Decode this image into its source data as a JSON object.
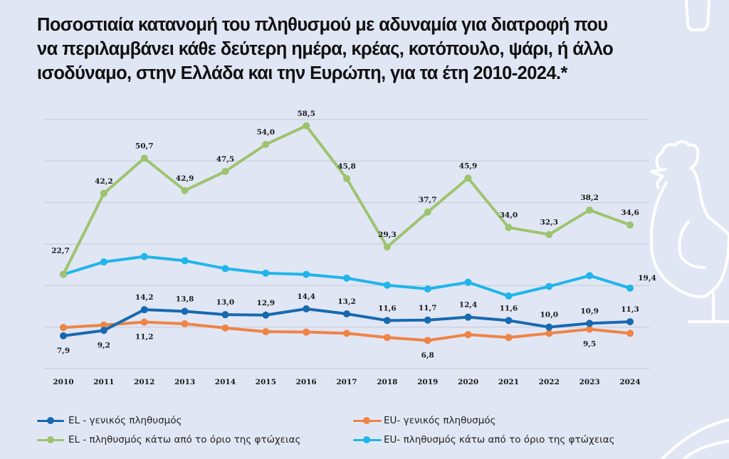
{
  "title_lines": [
    "Ποσοστιαία κατανομή του πληθυσμού με αδυναμία για διατροφή που",
    "να περιλαμβάνει κάθε δεύτερη ημέρα, κρέας, κοτόπουλο, ψάρι, ή άλλο",
    "ισοδύναμο, στην Ελλάδα και την Ευρώπη, για τα έτη 2010-2024.*"
  ],
  "decorations": [
    "bottle-icon",
    "rooster-icon"
  ],
  "chart_data": {
    "type": "line",
    "title": "Ποσοστιαία κατανομή του πληθυσμού με αδυναμία για διατροφή που να περιλαμβάνει κάθε δεύτερη ημέρα, κρέας, κοτόπουλο, ψάρι, ή άλλο ισοδύναμο, στην Ελλάδα και την Ευρώπη, για τα έτη 2010-2024.*",
    "xlabel": "",
    "ylabel": "",
    "x": [
      "2010",
      "2011",
      "2012",
      "2013",
      "2014",
      "2015",
      "2016",
      "2017",
      "2018",
      "2019",
      "2020",
      "2021",
      "2022",
      "2023",
      "2024"
    ],
    "ylim": [
      0,
      60
    ],
    "ygrid": [
      0,
      10,
      20,
      30,
      40,
      50,
      60
    ],
    "grid": true,
    "y_tick_labels_shown": false,
    "legend_position": "bottom",
    "series": [
      {
        "name": "EL - γενικός πληθυσμός",
        "color": "#1769b0",
        "values": [
          7.9,
          9.2,
          14.2,
          13.8,
          13.0,
          12.9,
          14.4,
          13.2,
          11.6,
          11.7,
          12.4,
          11.6,
          10.0,
          10.9,
          11.3
        ],
        "labels": [
          "7,9",
          "9,2",
          "14,2",
          "13,8",
          "13,0",
          "12,9",
          "14,4",
          "13,2",
          "11,6",
          "11,7",
          "12,4",
          "11,6",
          "10,0",
          "10,9",
          "11,3"
        ],
        "label_side": [
          "below",
          "below",
          "above",
          "above",
          "above",
          "above",
          "above",
          "above",
          "above",
          "above",
          "above",
          "above",
          "above",
          "above",
          "above"
        ]
      },
      {
        "name": "EU- γενικός πληθυσμός",
        "color": "#ef8445",
        "values": [
          9.9,
          10.5,
          11.2,
          10.8,
          9.8,
          8.9,
          8.8,
          8.5,
          7.5,
          6.8,
          8.2,
          7.5,
          8.5,
          9.5,
          8.5
        ],
        "labels": [
          null,
          null,
          "11,2",
          null,
          null,
          null,
          null,
          null,
          null,
          "6,8",
          null,
          null,
          null,
          "9,5",
          null
        ],
        "label_side": [
          null,
          null,
          "below",
          null,
          null,
          null,
          null,
          null,
          null,
          "below",
          null,
          null,
          null,
          "below",
          null
        ],
        "values_note": "unlabeled points estimated from gridlines"
      },
      {
        "name": "EL - πληθυσμός κάτω από το όριο της φτώχειας",
        "color": "#9cc46e",
        "values": [
          22.7,
          42.2,
          50.7,
          42.9,
          47.5,
          54.0,
          58.5,
          45.8,
          29.3,
          37.7,
          45.9,
          34.0,
          32.3,
          38.2,
          34.6
        ],
        "labels": [
          "22,7",
          "42,2",
          "50,7",
          "42,9",
          "47,5",
          "54,0",
          "58,5",
          "45,8",
          "29,3",
          "37,7",
          "45,9",
          "34,0",
          "32,3",
          "38,2",
          "34,6"
        ],
        "label_side": [
          "above-left",
          "above",
          "above",
          "above",
          "above",
          "above",
          "above",
          "above",
          "above",
          "above",
          "above",
          "above",
          "above",
          "above",
          "above"
        ]
      },
      {
        "name": "EU- πληθυσμός κάτω από το όριο της φτώχειας",
        "color": "#1fb5ea",
        "values": [
          22.7,
          25.7,
          27.0,
          26.0,
          24.1,
          23.0,
          22.7,
          21.8,
          20.1,
          19.2,
          20.8,
          17.5,
          19.8,
          22.4,
          19.4
        ],
        "labels": [
          null,
          null,
          null,
          null,
          null,
          null,
          null,
          null,
          null,
          null,
          null,
          null,
          null,
          null,
          "19,4"
        ],
        "label_side": [
          null,
          null,
          null,
          null,
          null,
          null,
          null,
          null,
          null,
          null,
          null,
          null,
          null,
          null,
          "above-right"
        ],
        "values_note": "unlabeled points estimated from gridlines"
      }
    ]
  },
  "legend": [
    {
      "label": "EL - γενικός πληθυσμός",
      "color": "#1769b0"
    },
    {
      "label": "EU- γενικός πληθυσμός",
      "color": "#ef8445"
    },
    {
      "label": "EL - πληθυσμός κάτω από το όριο της φτώχειας",
      "color": "#9cc46e"
    },
    {
      "label": "EU- πληθυσμός κάτω από το όριο της φτώχειας",
      "color": "#1fb5ea"
    }
  ]
}
